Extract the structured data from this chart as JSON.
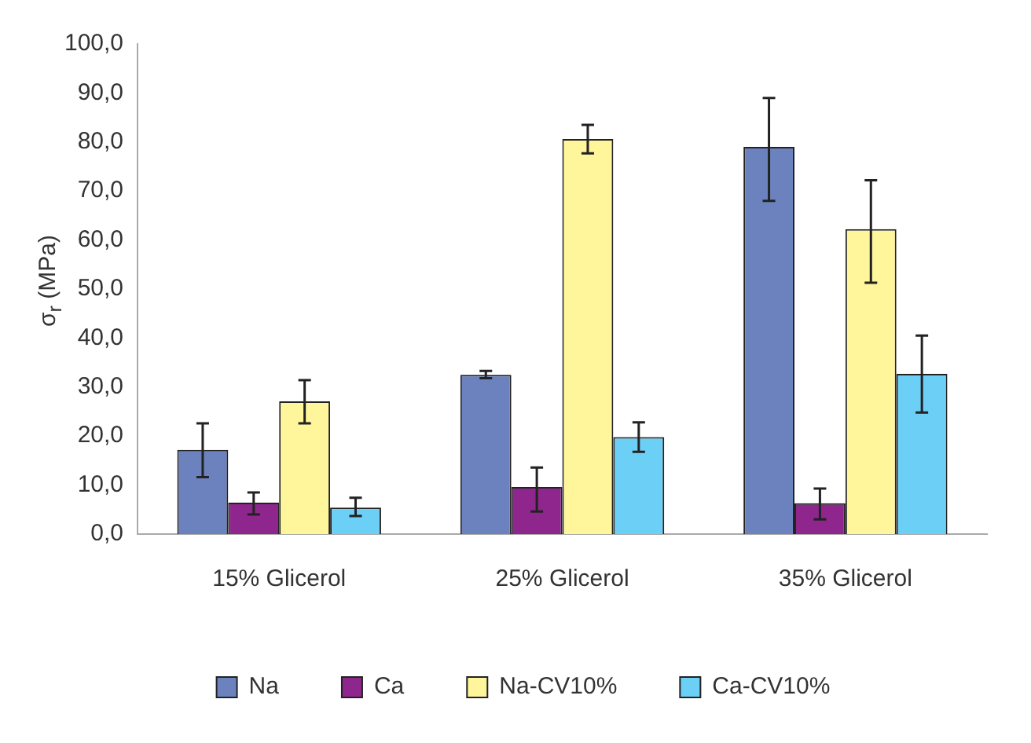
{
  "chart_data": {
    "type": "bar",
    "ylabel": "σ$_{r}$ (MPa)",
    "categories": [
      "15% Glicerol",
      "25% Glicerol",
      "35% Glicerol"
    ],
    "series": [
      {
        "name": "Na",
        "color": "#6b82be",
        "values": [
          17.2,
          32.5,
          79.0
        ],
        "errors": [
          [
            11.6,
            22.6
          ],
          [
            31.8,
            33.3
          ],
          [
            68.0,
            89.0
          ]
        ]
      },
      {
        "name": "Ca",
        "color": "#8e268e",
        "values": [
          6.4,
          9.6,
          6.3
        ],
        "errors": [
          [
            4.0,
            8.5
          ],
          [
            4.6,
            13.6
          ],
          [
            3.0,
            9.3
          ]
        ]
      },
      {
        "name": "Na-CV10%",
        "color": "#fff59a",
        "values": [
          27.1,
          80.6,
          62.2
        ],
        "errors": [
          [
            22.6,
            31.4
          ],
          [
            77.7,
            83.5
          ],
          [
            51.3,
            72.2
          ]
        ]
      },
      {
        "name": "Ca-CV10%",
        "color": "#6ccff5",
        "values": [
          5.4,
          19.8,
          32.7
        ],
        "errors": [
          [
            3.7,
            7.4
          ],
          [
            16.8,
            22.8
          ],
          [
            24.8,
            40.5
          ]
        ]
      }
    ],
    "ylim": [
      0,
      100
    ],
    "yticks": [
      {
        "value": 0,
        "label": "0,0"
      },
      {
        "value": 10,
        "label": "10,0"
      },
      {
        "value": 20,
        "label": "20,0"
      },
      {
        "value": 30,
        "label": "30,0"
      },
      {
        "value": 40,
        "label": "40,0"
      },
      {
        "value": 50,
        "label": "50,0"
      },
      {
        "value": 60,
        "label": "60,0"
      },
      {
        "value": 70,
        "label": "70,0"
      },
      {
        "value": 80,
        "label": "80,0"
      },
      {
        "value": 90,
        "label": "90,0"
      },
      {
        "value": 100,
        "label": "100,0"
      }
    ],
    "grid": false,
    "legend": "bottom"
  }
}
